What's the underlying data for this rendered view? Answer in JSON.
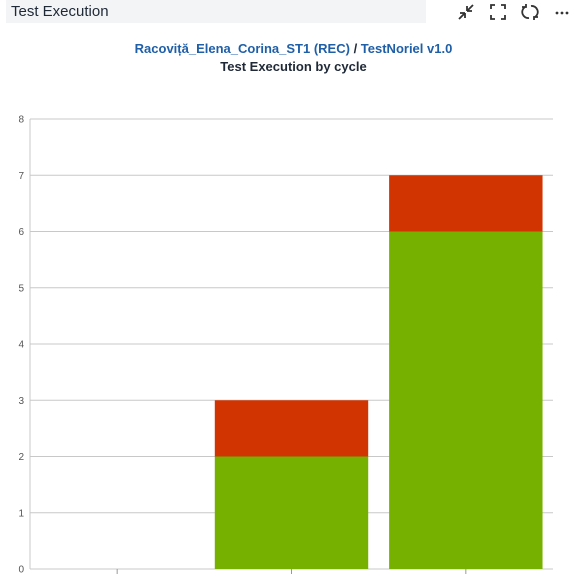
{
  "panel": {
    "title": "Test Execution"
  },
  "toolbar": {
    "icons": [
      "collapse-icon",
      "fullscreen-icon",
      "refresh-icon",
      "more-icon"
    ]
  },
  "header": {
    "project_link": "Racoviță_Elena_Corina_ST1 (REC)",
    "separator": " / ",
    "version_link": "TestNoriel v1.0"
  },
  "colors": {
    "passed": "#77b100",
    "failed": "#d13400",
    "grid": "#c8c8c8",
    "link": "#1f5fa8"
  },
  "chart_data": {
    "type": "bar",
    "stacked": true,
    "title": "Test Execution by cycle",
    "categories": [
      "",
      "",
      ""
    ],
    "series": [
      {
        "color": "#77b100",
        "values": [
          0,
          2,
          6
        ]
      },
      {
        "color": "#d13400",
        "values": [
          0,
          1,
          1
        ]
      }
    ],
    "ylim": [
      0,
      8
    ],
    "yticks": [
      0,
      1,
      2,
      3,
      4,
      5,
      6,
      7,
      8
    ],
    "grid": true,
    "legend": "none"
  }
}
